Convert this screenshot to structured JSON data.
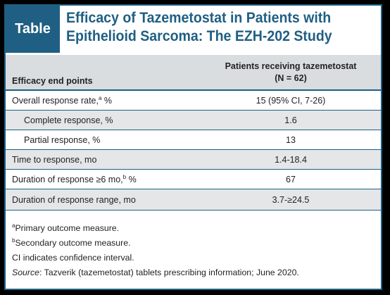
{
  "header": {
    "tag": "Table",
    "title_line1": "Efficacy of Tazemetostat in Patients with",
    "title_line2": "Epithelioid Sarcoma: The EZH-202 Study"
  },
  "columns": {
    "endpoint": "Efficacy end points",
    "patients_line1": "Patients receiving tazemetostat",
    "patients_line2": "(N = 62)"
  },
  "rows": [
    {
      "label": "Overall response rate,",
      "sup": "a",
      "label_tail": " %",
      "value": "15 (95% CI, 7-26)"
    },
    {
      "label": "Complete response, %",
      "value": "1.6"
    },
    {
      "label": "Partial response, %",
      "value": "13"
    },
    {
      "label": "Time to response, mo",
      "value": "1.4-18.4"
    },
    {
      "label": "Duration of response ≥6 mo,",
      "sup": "b",
      "label_tail": " %",
      "value": "67"
    },
    {
      "label": "Duration of response range, mo",
      "value": "3.7-≥24.5"
    }
  ],
  "footnotes": {
    "a_mark": "a",
    "a_text": "Primary outcome measure.",
    "b_mark": "b",
    "b_text": "Secondary outcome measure.",
    "ci": "CI indicates confidence interval.",
    "source_label": "Source",
    "source_text": ": Tazverik (tazemetostat) tablets prescribing information; June 2020."
  }
}
